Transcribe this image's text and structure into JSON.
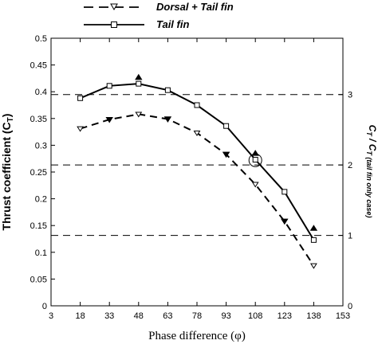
{
  "chart_data": {
    "type": "line",
    "xlabel": "Phase difference (φ)",
    "ylabel": "Thrust coefficient (C",
    "ylabel_sub": "T",
    "ylabel_close": ")",
    "y2label": "C",
    "y2label_mid": " / C",
    "y2label_sub": "T",
    "y2label_sub2": "T (tail fin only case)",
    "x_ticks": [
      "3",
      "18",
      "33",
      "48",
      "63",
      "78",
      "93",
      "108",
      "123",
      "138",
      "153"
    ],
    "xlim": [
      3,
      153
    ],
    "y_ticks": [
      "0",
      "0.05",
      "0.1",
      "0.15",
      "0.2",
      "0.25",
      "0.3",
      "0.35",
      "0.4",
      "0.45",
      "0.5"
    ],
    "ylim": [
      0,
      0.5
    ],
    "y2_ticks": [
      "0",
      "1",
      "2",
      "3"
    ],
    "y2lim": [
      0,
      3.8
    ],
    "grid": false,
    "legend_position": "top-outside",
    "series": [
      {
        "name": "Dorsal + Tail fin",
        "style": "dashed",
        "marker": "triangle-down-open",
        "color": "#000000",
        "x": [
          18,
          33,
          48,
          63,
          78,
          93,
          108,
          123,
          138
        ],
        "y": [
          0.331,
          0.348,
          0.358,
          0.349,
          0.323,
          0.283,
          0.227,
          0.158,
          0.075
        ]
      },
      {
        "name": "Tail fin",
        "style": "solid",
        "marker": "square-open",
        "color": "#000000",
        "x": [
          18,
          33,
          48,
          63,
          78,
          93,
          108,
          123,
          138
        ],
        "y": [
          0.388,
          0.411,
          0.415,
          0.403,
          0.375,
          0.336,
          0.273,
          0.213,
          0.123
        ]
      }
    ],
    "extra_markers": {
      "dashed_filled": {
        "marker": "triangle-down-filled",
        "x": [
          33,
          63,
          93,
          123
        ],
        "y": [
          0.348,
          0.349,
          0.283,
          0.158
        ]
      },
      "solid_filled": {
        "marker": "triangle-up-filled",
        "x": [
          48,
          108,
          138
        ],
        "y": [
          0.427,
          0.285,
          0.145
        ]
      }
    },
    "reference_lines_y2": [
      1,
      2,
      3
    ],
    "highlight_circle": {
      "x": 108,
      "y": 0.272
    }
  }
}
